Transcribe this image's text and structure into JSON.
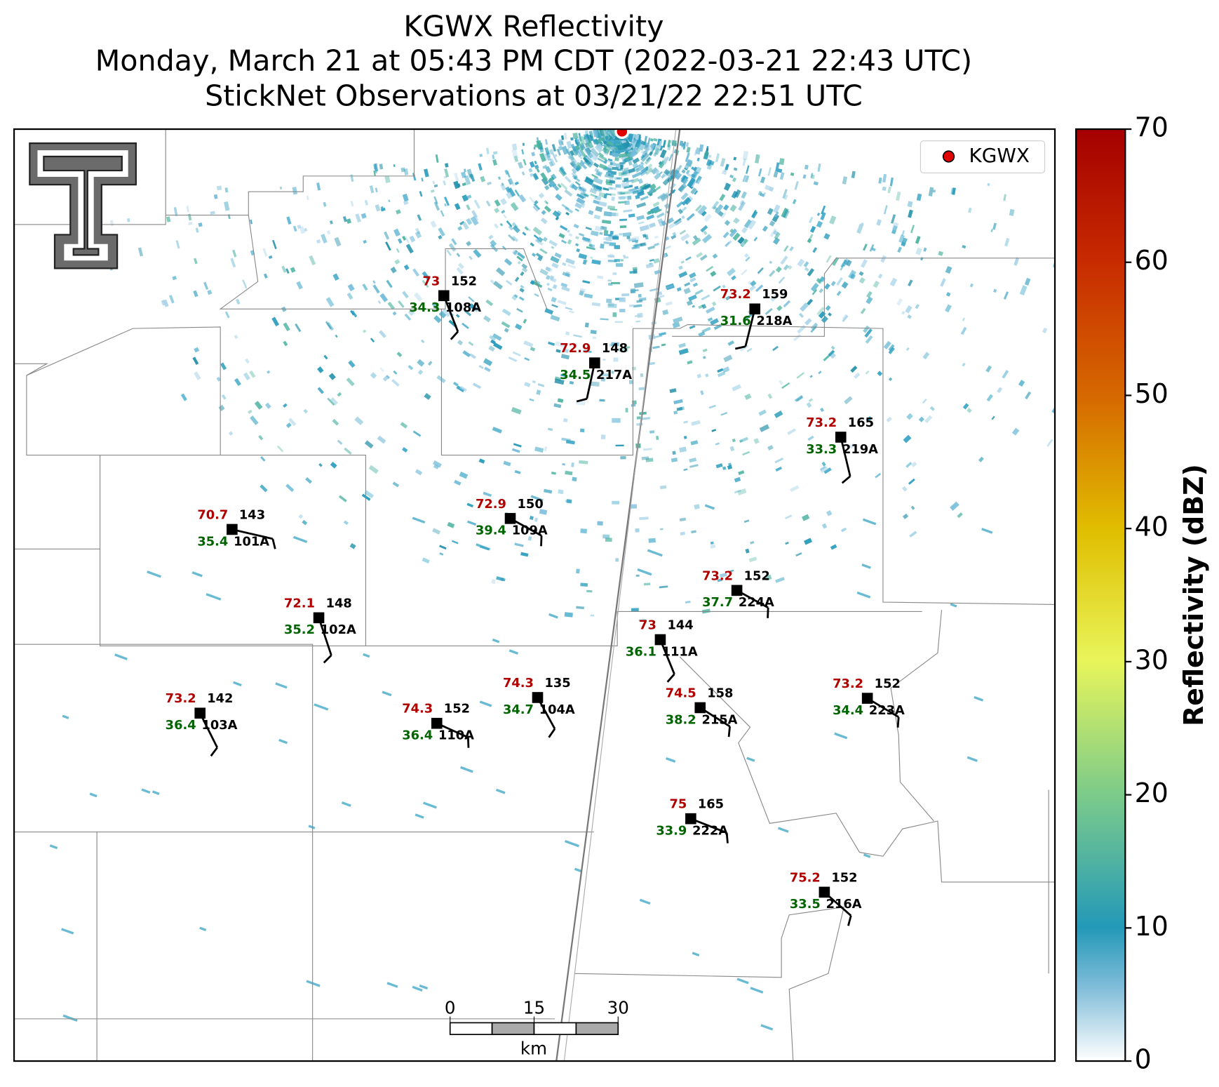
{
  "title": [
    "KGWX Reflectivity",
    "Monday, March 21 at 05:43 PM CDT (2022-03-21 22:43 UTC)",
    "StickNet Observations at 03/21/22 22:51 UTC"
  ],
  "legend": {
    "label": "KGWX"
  },
  "colorbar": {
    "label": "Reflectivity (dBZ)",
    "lim": [
      0,
      70
    ],
    "ticks": [
      0,
      10,
      20,
      30,
      40,
      50,
      60,
      70
    ]
  },
  "scalebar": {
    "ticks": [
      0,
      15,
      30
    ],
    "unit": "km"
  },
  "stations": [
    {
      "id": "108A",
      "temperature": 73.0,
      "dewpoint": 34.3,
      "value": 152
    },
    {
      "id": "217A",
      "temperature": 72.9,
      "dewpoint": 34.5,
      "value": 148
    },
    {
      "id": "218A",
      "temperature": 73.2,
      "dewpoint": 31.6,
      "value": 159
    },
    {
      "id": "219A",
      "temperature": 73.2,
      "dewpoint": 33.3,
      "value": 165
    },
    {
      "id": "101A",
      "temperature": 70.7,
      "dewpoint": 35.4,
      "value": 143
    },
    {
      "id": "109A",
      "temperature": 72.9,
      "dewpoint": 39.4,
      "value": 150
    },
    {
      "id": "224A",
      "temperature": 73.2,
      "dewpoint": 37.7,
      "value": 152
    },
    {
      "id": "102A",
      "temperature": 72.1,
      "dewpoint": 35.2,
      "value": 148
    },
    {
      "id": "111A",
      "temperature": 73.0,
      "dewpoint": 36.1,
      "value": 144
    },
    {
      "id": "103A",
      "temperature": 73.2,
      "dewpoint": 36.4,
      "value": 142
    },
    {
      "id": "110A",
      "temperature": 74.3,
      "dewpoint": 36.4,
      "value": 152
    },
    {
      "id": "104A",
      "temperature": 74.3,
      "dewpoint": 34.7,
      "value": 135
    },
    {
      "id": "215A",
      "temperature": 74.5,
      "dewpoint": 38.2,
      "value": 158
    },
    {
      "id": "223A",
      "temperature": 73.2,
      "dewpoint": 34.4,
      "value": 152
    },
    {
      "id": "222A",
      "temperature": 75.0,
      "dewpoint": 33.9,
      "value": 165
    },
    {
      "id": "216A",
      "temperature": 75.2,
      "dewpoint": 33.5,
      "value": 152
    }
  ]
}
